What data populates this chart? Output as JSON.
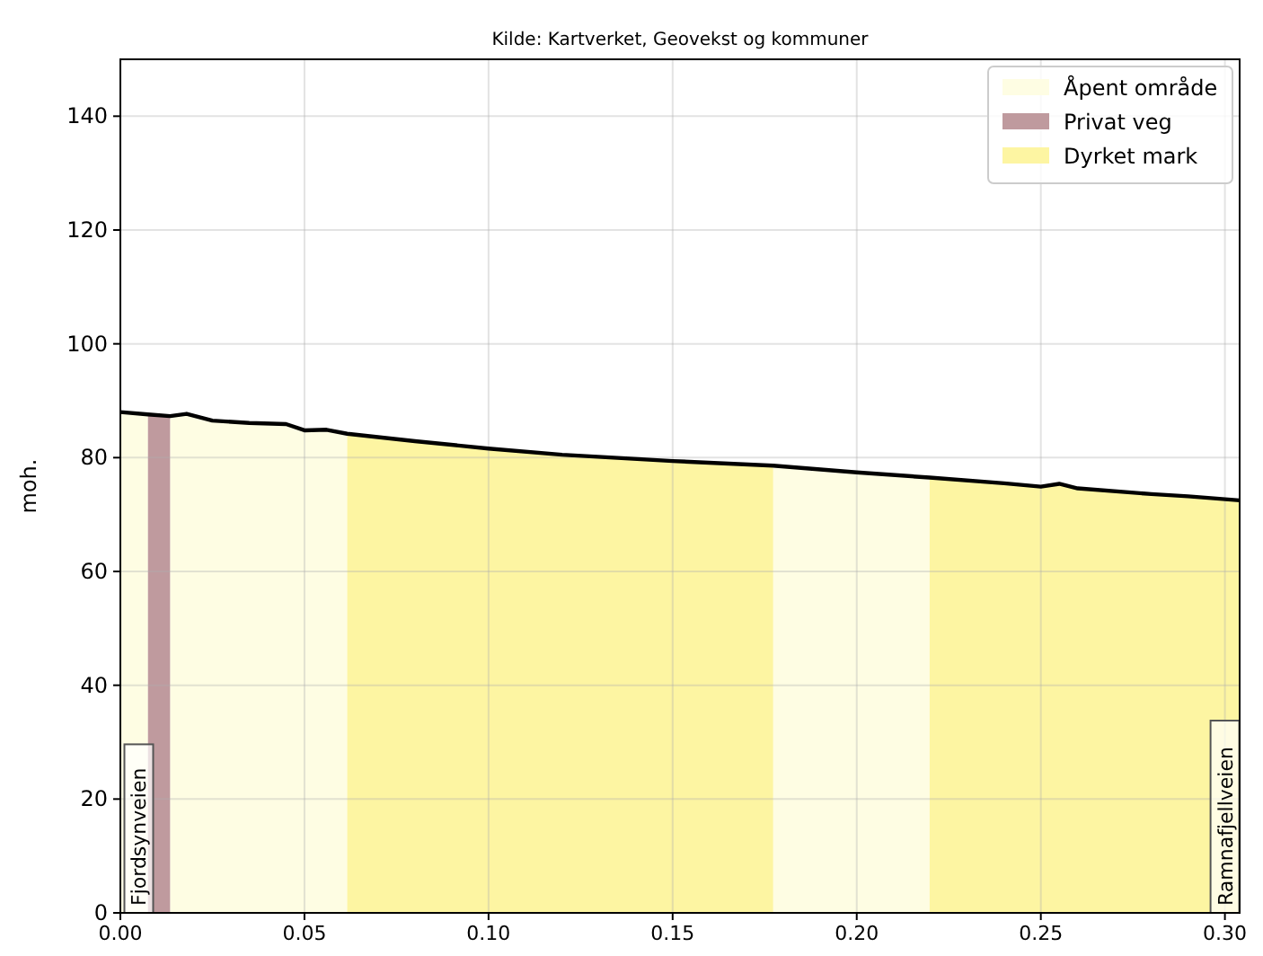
{
  "chart_data": {
    "type": "area",
    "title": "Kilde: Kartverket, Geovekst og kommuner",
    "ylabel": "moh.",
    "xlim": [
      0,
      0.304
    ],
    "xticks": [
      {
        "value": 0,
        "label": "0.00"
      },
      {
        "value": 0.05,
        "label": "0.05"
      },
      {
        "value": 0.1,
        "label": "0.10"
      },
      {
        "value": 0.15,
        "label": "0.15"
      },
      {
        "value": 0.2,
        "label": "0.20"
      },
      {
        "value": 0.25,
        "label": "0.25"
      },
      {
        "value": 0.3,
        "label": "0.30"
      }
    ],
    "ylim": [
      0,
      150
    ],
    "yticks": [
      0,
      20,
      40,
      60,
      80,
      100,
      120,
      140
    ],
    "grid": true,
    "legend": "top right",
    "series": [
      {
        "name": "Åpent område",
        "color": "#fefde3",
        "x": [
          0,
          0.0075,
          0.01,
          0.0135,
          0.018,
          0.025,
          0.035,
          0.045,
          0.05,
          0.056,
          0.0616,
          0.1,
          0.1773,
          0.2,
          0.2198
        ],
        "values": [
          88.0,
          87.6,
          null,
          87.3,
          87.7,
          86.5,
          86.1,
          85.9,
          84.8,
          84.9,
          84.2,
          null,
          78.6,
          77.4,
          76.5
        ]
      },
      {
        "name": "Privat veg",
        "color": "#bf9a9e",
        "x": [
          0.0075,
          0.0135
        ],
        "values": [
          87.6,
          87.3
        ]
      },
      {
        "name": "Dyrket mark",
        "color": "#fdf5a2",
        "x": [
          0.0616,
          0.08,
          0.1,
          0.12,
          0.15,
          0.1773,
          0.2,
          0.2198,
          0.24,
          0.25,
          0.255,
          0.26,
          0.28,
          0.29,
          0.304
        ],
        "values": [
          84.2,
          82.9,
          81.6,
          80.5,
          79.4,
          78.6,
          null,
          76.5,
          75.5,
          74.9,
          75.4,
          74.6,
          73.6,
          73.2,
          72.5
        ]
      },
      {
        "type": "line",
        "color": "#000000",
        "x": [
          0,
          0.0075,
          0.0135,
          0.018,
          0.025,
          0.035,
          0.045,
          0.05,
          0.056,
          0.0616,
          0.08,
          0.1,
          0.12,
          0.15,
          0.1773,
          0.2,
          0.2198,
          0.24,
          0.25,
          0.255,
          0.26,
          0.28,
          0.29,
          0.304
        ],
        "values": [
          88.0,
          87.6,
          87.3,
          87.7,
          86.5,
          86.1,
          85.9,
          84.8,
          84.9,
          84.2,
          82.9,
          81.6,
          80.5,
          79.4,
          78.6,
          77.4,
          76.5,
          75.5,
          74.9,
          75.4,
          74.6,
          73.6,
          73.2,
          72.5
        ]
      }
    ],
    "annotations": [
      {
        "text": "Fjordsynveien",
        "x": 0.005,
        "y": 0
      },
      {
        "text": "Ramnafjellveien",
        "x": 0.3,
        "y": 0
      }
    ]
  }
}
